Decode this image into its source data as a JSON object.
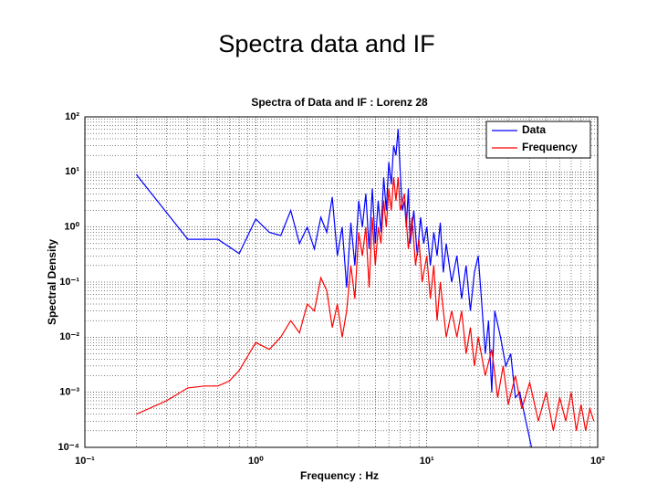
{
  "slide_title": "Spectra data and IF",
  "chart_data": {
    "type": "line",
    "title": "Spectra of Data and IF : Lorenz 28",
    "xlabel": "Frequency : Hz",
    "ylabel": "Spectral Density",
    "xlog": true,
    "ylog": true,
    "grid": true,
    "legend": "northeast",
    "xlim": [
      0.1,
      100
    ],
    "ylim": [
      0.0001,
      100
    ],
    "xticks": [
      {
        "value": 0.1,
        "label": "10⁻¹"
      },
      {
        "value": 1,
        "label": "10⁰"
      },
      {
        "value": 10,
        "label": "10¹"
      },
      {
        "value": 100,
        "label": "10²"
      }
    ],
    "yticks": [
      {
        "value": 0.0001,
        "label": "10⁻⁴"
      },
      {
        "value": 0.001,
        "label": "10⁻³"
      },
      {
        "value": 0.01,
        "label": "10⁻²"
      },
      {
        "value": 0.1,
        "label": "10⁻¹"
      },
      {
        "value": 1,
        "label": "10⁰"
      },
      {
        "value": 10,
        "label": "10¹"
      },
      {
        "value": 100,
        "label": "10²"
      }
    ],
    "series": [
      {
        "name": "Data",
        "color": "#0000ff",
        "x": [
          0.2,
          0.4,
          0.6,
          0.8,
          1.0,
          1.2,
          1.4,
          1.6,
          1.8,
          2.0,
          2.2,
          2.4,
          2.6,
          2.8,
          3.0,
          3.2,
          3.4,
          3.6,
          3.8,
          4.0,
          4.2,
          4.4,
          4.6,
          4.8,
          5.0,
          5.2,
          5.4,
          5.6,
          5.8,
          6.0,
          6.2,
          6.4,
          6.6,
          6.8,
          7.0,
          7.2,
          7.4,
          7.6,
          7.8,
          8.0,
          8.4,
          8.8,
          9.2,
          9.6,
          10,
          10.5,
          11,
          11.5,
          12,
          12.5,
          13,
          14,
          15,
          16,
          17,
          18,
          19,
          20,
          21,
          22,
          23,
          24,
          25,
          27,
          29,
          31,
          33,
          35,
          38,
          41
        ],
        "values": [
          9,
          0.6,
          0.6,
          0.33,
          1.4,
          0.8,
          0.7,
          2.0,
          0.5,
          1.0,
          0.4,
          1.5,
          0.8,
          3.5,
          0.3,
          1.0,
          0.08,
          1.2,
          0.2,
          3.0,
          1.0,
          4.0,
          0.4,
          5,
          0.5,
          3,
          0.8,
          8,
          2,
          15,
          6,
          30,
          20,
          60,
          10,
          2,
          3,
          1,
          5,
          0.5,
          2,
          0.3,
          1.5,
          0.5,
          1,
          0.2,
          0.8,
          0.3,
          1.2,
          0.15,
          0.5,
          0.1,
          0.3,
          0.05,
          0.2,
          0.03,
          0.15,
          0.3,
          0.04,
          0.005,
          0.02,
          0.001,
          0.03,
          0.01,
          0.003,
          0.005,
          0.0008,
          0.001,
          0.0003,
          0.0001
        ]
      },
      {
        "name": "Frequency",
        "color": "#ff0000",
        "x": [
          0.2,
          0.3,
          0.4,
          0.5,
          0.6,
          0.7,
          0.8,
          1.0,
          1.2,
          1.4,
          1.6,
          1.8,
          2.0,
          2.2,
          2.4,
          2.6,
          2.8,
          3.0,
          3.2,
          3.4,
          3.6,
          3.8,
          4.0,
          4.2,
          4.4,
          4.6,
          4.8,
          5.0,
          5.2,
          5.4,
          5.6,
          5.8,
          6.0,
          6.2,
          6.4,
          6.6,
          6.8,
          7.0,
          7.4,
          7.8,
          8.2,
          8.6,
          9.0,
          9.4,
          10,
          10.5,
          11,
          11.5,
          12,
          13,
          14,
          15,
          16,
          17,
          18,
          19,
          20,
          22,
          24,
          26,
          28,
          30,
          33,
          36,
          40,
          45,
          50,
          55,
          60,
          65,
          70,
          75,
          80,
          85,
          90,
          95
        ],
        "values": [
          0.0004,
          0.0007,
          0.0012,
          0.0013,
          0.0013,
          0.0016,
          0.0025,
          0.008,
          0.006,
          0.01,
          0.02,
          0.012,
          0.04,
          0.03,
          0.12,
          0.07,
          0.015,
          0.04,
          0.01,
          0.03,
          0.2,
          0.05,
          0.8,
          0.3,
          1,
          0.08,
          1.5,
          0.2,
          1.0,
          0.5,
          3,
          1,
          5,
          2,
          8,
          3,
          8,
          2,
          4,
          0.4,
          1.5,
          0.2,
          0.6,
          0.1,
          0.3,
          0.05,
          0.2,
          0.02,
          0.1,
          0.01,
          0.03,
          0.01,
          0.03,
          0.005,
          0.015,
          0.003,
          0.01,
          0.002,
          0.006,
          0.0008,
          0.003,
          0.0006,
          0.002,
          0.0005,
          0.0015,
          0.0003,
          0.001,
          0.0002,
          0.0008,
          0.0003,
          0.001,
          0.0002,
          0.0006,
          0.0002,
          0.0005,
          0.0003
        ]
      }
    ]
  }
}
